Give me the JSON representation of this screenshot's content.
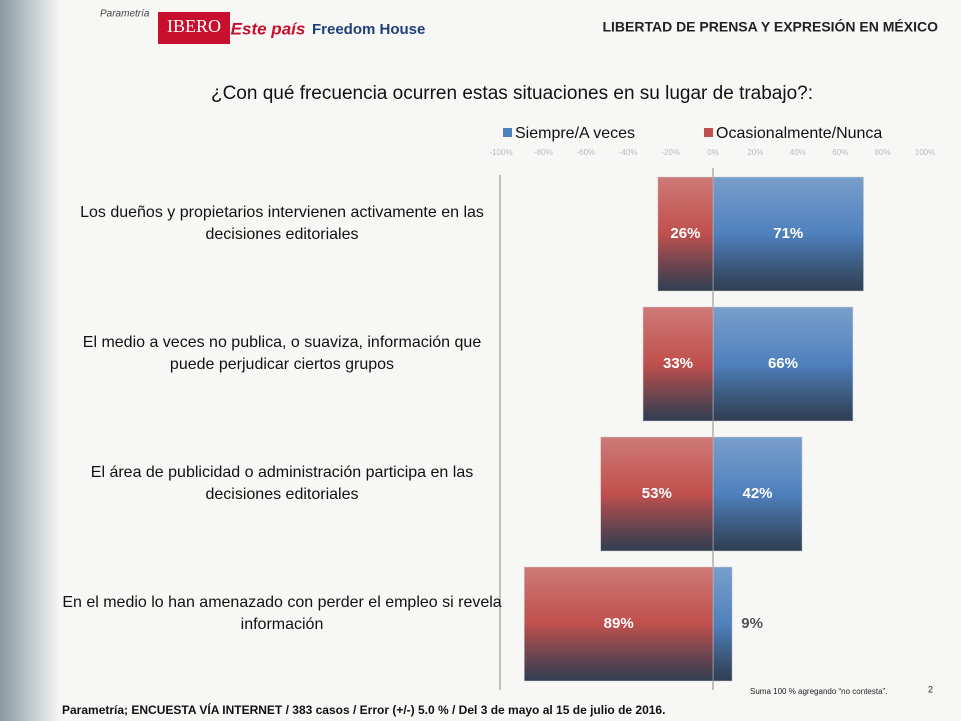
{
  "header": {
    "logos": [
      "Parametría",
      "IBERO",
      "Este país",
      "Freedom House"
    ],
    "title": "LIBERTAD DE PRENSA Y EXPRESIÓN EN MÉXICO"
  },
  "chart_data": {
    "type": "diverging-bar",
    "title": "¿Con qué frecuencia ocurren estas situaciones en su lugar de trabajo?:",
    "categories": [
      "Los dueños y propietarios intervienen activamente en las decisiones editoriales",
      "El medio a veces no publica, o suaviza, información que puede perjudicar ciertos grupos",
      "El área de publicidad o administración participa en las decisiones editoriales",
      "En el medio lo han amenazado con perder el empleo si revela información"
    ],
    "series": [
      {
        "name": "Siempre/A veces",
        "color": "#4f81bd",
        "side": "right",
        "values": [
          71,
          66,
          42,
          9
        ],
        "value_labels": [
          "71%",
          "66%",
          "42%",
          "9%"
        ]
      },
      {
        "name": "Ocasionalmente/Nunca",
        "color": "#c0504d",
        "side": "left",
        "values": [
          26,
          33,
          53,
          89
        ],
        "value_labels": [
          "26%",
          "33%",
          "53%",
          "89%"
        ]
      }
    ],
    "xlim": [
      -100,
      100
    ],
    "xticks": [
      {
        "value": -100,
        "label": "-100%"
      },
      {
        "value": -80,
        "label": "-80%"
      },
      {
        "value": -60,
        "label": "-60%"
      },
      {
        "value": -40,
        "label": "-40%"
      },
      {
        "value": -20,
        "label": "-20%"
      },
      {
        "value": 0,
        "label": "0%"
      },
      {
        "value": 20,
        "label": "20%"
      },
      {
        "value": 40,
        "label": "40%"
      },
      {
        "value": 60,
        "label": "60%"
      },
      {
        "value": 80,
        "label": "80%"
      },
      {
        "value": 100,
        "label": "100%"
      }
    ],
    "note": "Suma 100 % agregando “no contesta”.",
    "legend": "top"
  },
  "footer": {
    "source": "Parametría; ENCUESTA VÍA INTERNET /  383 casos / Error (+/-) 5.0 % / Del 3 de mayo al 15 de julio de 2016.",
    "page": "2"
  }
}
